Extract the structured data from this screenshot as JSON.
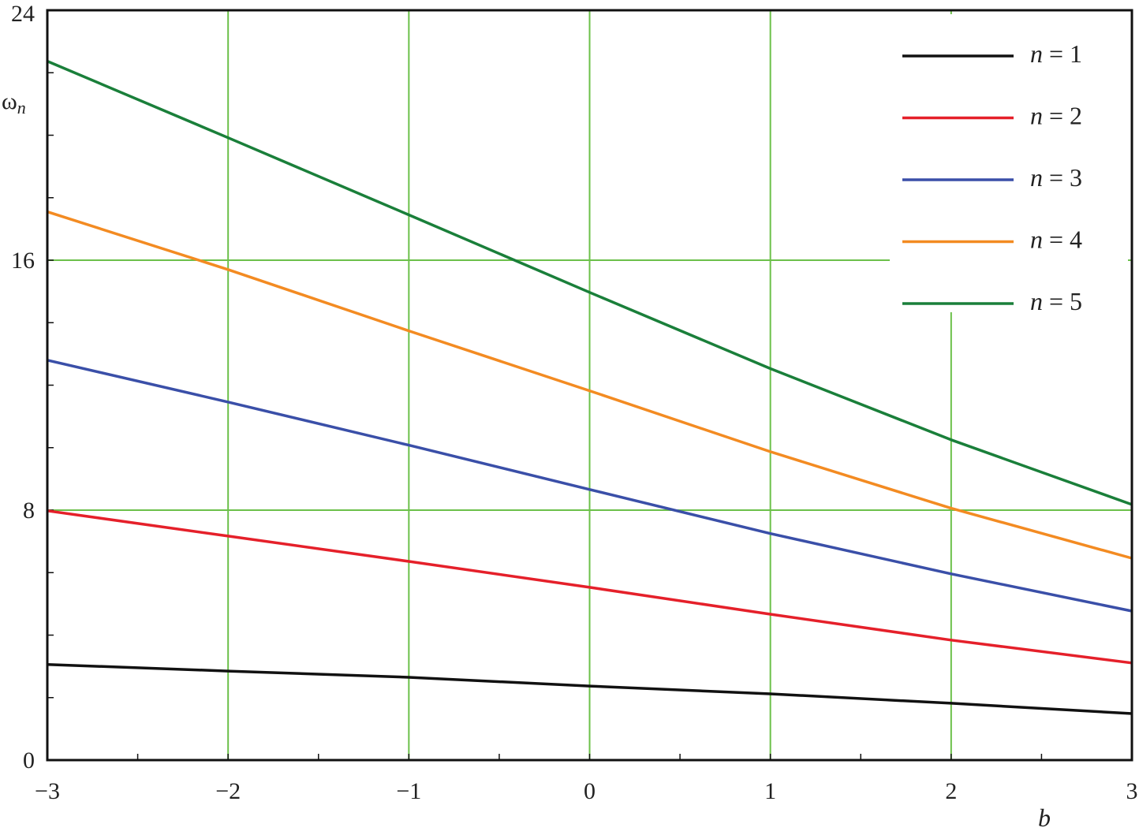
{
  "chart_data": {
    "type": "line",
    "title": "",
    "xlabel": "b",
    "ylabel": "ωn",
    "ylabel_main": "ω",
    "ylabel_sub": "n",
    "xlim": [
      -3,
      3
    ],
    "ylim": [
      0,
      24
    ],
    "x_ticks": [
      "−3",
      "−2",
      "−1",
      "0",
      "1",
      "2",
      "3"
    ],
    "x_tick_values": [
      -3,
      -2,
      -1,
      0,
      1,
      2,
      3
    ],
    "y_ticks": [
      "0",
      "8",
      "16",
      "24"
    ],
    "y_tick_values": [
      0,
      8,
      16,
      24
    ],
    "grid": true,
    "grid_color": "#6cc04a",
    "legend_position": "top-right",
    "x": [
      -3,
      -2,
      -1,
      0,
      1,
      2,
      3
    ],
    "series": [
      {
        "name": "n = 1",
        "color": "#111111",
        "values": [
          3.06,
          2.85,
          2.65,
          2.37,
          2.12,
          1.82,
          1.49
        ]
      },
      {
        "name": "n = 2",
        "color": "#e5202a",
        "values": [
          7.98,
          7.17,
          6.36,
          5.53,
          4.67,
          3.84,
          3.11
        ]
      },
      {
        "name": "n = 3",
        "color": "#3a4fa8",
        "values": [
          12.8,
          11.46,
          10.08,
          8.66,
          7.25,
          5.96,
          4.77
        ]
      },
      {
        "name": "n = 4",
        "color": "#f38b22",
        "values": [
          17.55,
          15.7,
          13.74,
          11.82,
          9.87,
          8.06,
          6.46
        ]
      },
      {
        "name": "n = 5",
        "color": "#1a7f3a",
        "values": [
          22.37,
          19.92,
          17.45,
          14.97,
          12.53,
          10.25,
          8.18
        ]
      }
    ]
  }
}
